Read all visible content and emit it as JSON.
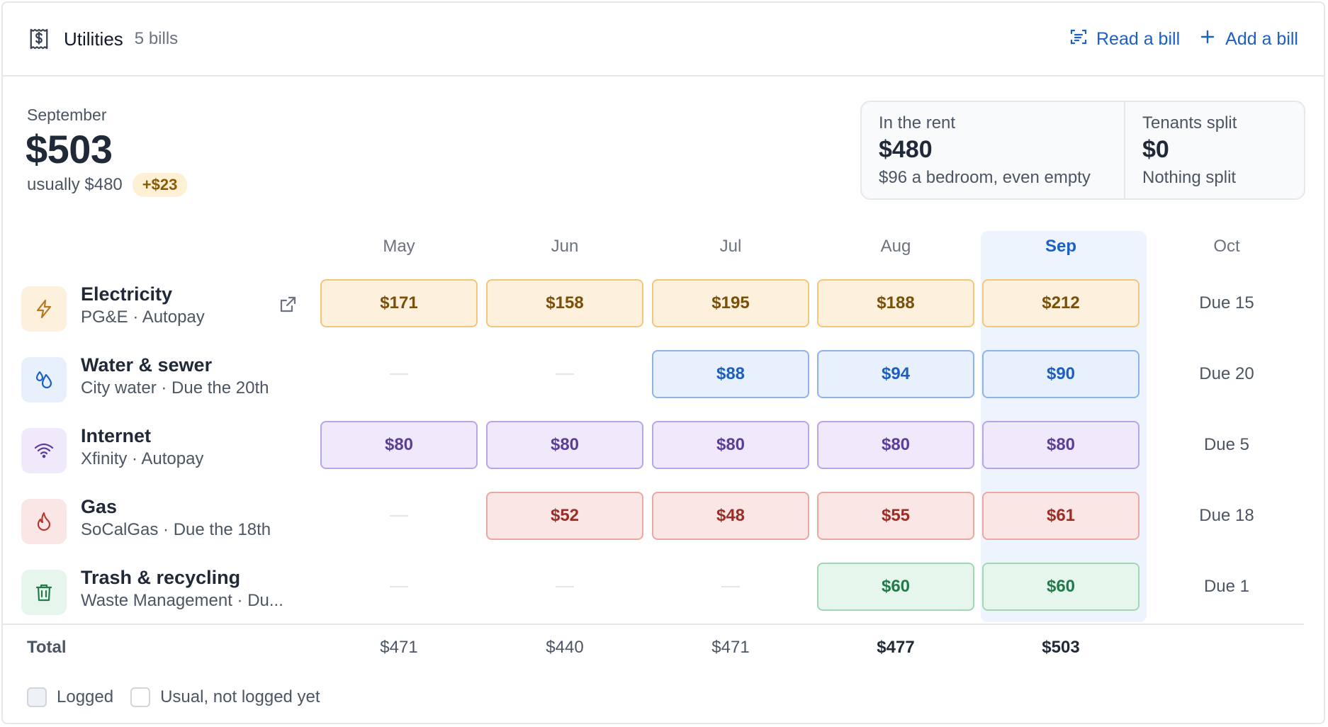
{
  "header": {
    "title": "Utilities",
    "count": "5 bills",
    "read_bill_label": "Read a bill",
    "add_bill_label": "Add a bill"
  },
  "summary": {
    "month": "September",
    "total": "$503",
    "usual": "usually $480",
    "delta": "+$23"
  },
  "stats": {
    "rent_label": "In the rent",
    "rent_value": "$480",
    "rent_sub": "$96 a bedroom, even empty",
    "split_label": "Tenants split",
    "split_value": "$0",
    "split_sub": "Nothing split"
  },
  "months": [
    "May",
    "Jun",
    "Jul",
    "Aug",
    "Sep",
    "Oct"
  ],
  "current_month": "Sep",
  "utilities": [
    {
      "name": "Electricity",
      "sub": "PG&E · Autopay",
      "icon": "lightning-icon",
      "color": "orange",
      "has_link": true,
      "values": [
        "$171",
        "$158",
        "$195",
        "$188",
        "$212"
      ],
      "due": "Due 15"
    },
    {
      "name": "Water & sewer",
      "sub": "City water · Due the 20th",
      "icon": "water-drop-icon",
      "color": "blue",
      "has_link": false,
      "values": [
        "",
        "",
        "$88",
        "$94",
        "$90"
      ],
      "due": "Due 20"
    },
    {
      "name": "Internet",
      "sub": "Xfinity · Autopay",
      "icon": "wifi-icon",
      "color": "purple",
      "has_link": false,
      "values": [
        "$80",
        "$80",
        "$80",
        "$80",
        "$80"
      ],
      "due": "Due 5"
    },
    {
      "name": "Gas",
      "sub": "SoCalGas · Due the 18th",
      "icon": "flame-icon",
      "color": "red",
      "has_link": false,
      "values": [
        "",
        "$52",
        "$48",
        "$55",
        "$61"
      ],
      "due": "Due 18"
    },
    {
      "name": "Trash & recycling",
      "sub": "Waste Management · Du...",
      "icon": "trash-icon",
      "color": "green",
      "has_link": false,
      "values": [
        "",
        "",
        "",
        "$60",
        "$60"
      ],
      "due": "Due 1"
    }
  ],
  "totals": {
    "label": "Total",
    "values": [
      "$471",
      "$440",
      "$471",
      "$477",
      "$503"
    ]
  },
  "legend": {
    "logged": "Logged",
    "usual": "Usual, not logged yet"
  },
  "colors": {
    "accent": "#1d5fc4",
    "orange": "#f3c77b",
    "blue": "#8db3ea",
    "purple": "#b9a5e6",
    "red": "#eba7a2",
    "green": "#9fd8b3"
  }
}
